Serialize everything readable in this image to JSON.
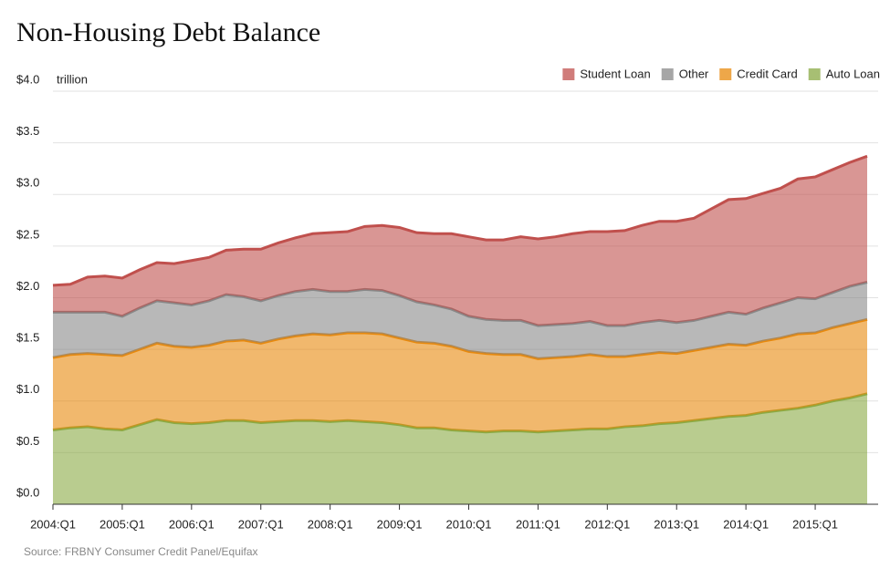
{
  "chart_data": {
    "type": "stacked_area",
    "title": "Non-Housing Debt Balance",
    "unit_label": "trillion",
    "source": "Source: FRBNY Consumer Credit Panel/Equifax",
    "categories": [
      "2004:Q1",
      null,
      null,
      null,
      "2005:Q1",
      null,
      null,
      null,
      "2006:Q1",
      null,
      null,
      null,
      "2007:Q1",
      null,
      null,
      null,
      "2008:Q1",
      null,
      null,
      null,
      "2009:Q1",
      null,
      null,
      null,
      "2010:Q1",
      null,
      null,
      null,
      "2011:Q1",
      null,
      null,
      null,
      "2012:Q1",
      null,
      null,
      null,
      "2013:Q1",
      null,
      null,
      null,
      "2014:Q1",
      null,
      null,
      null,
      "2015:Q1",
      null,
      null,
      null
    ],
    "series": [
      {
        "name": "Student Loan",
        "color": "#c0504d",
        "values": [
          0.26,
          0.27,
          0.34,
          0.35,
          0.37,
          0.37,
          0.37,
          0.38,
          0.43,
          0.42,
          0.43,
          0.46,
          0.5,
          0.51,
          0.52,
          0.54,
          0.57,
          0.58,
          0.61,
          0.63,
          0.66,
          0.67,
          0.69,
          0.73,
          0.77,
          0.77,
          0.78,
          0.81,
          0.84,
          0.85,
          0.87,
          0.87,
          0.91,
          0.92,
          0.94,
          0.96,
          0.98,
          0.99,
          1.04,
          1.09,
          1.12,
          1.11,
          1.11,
          1.15,
          1.18,
          1.19,
          1.2,
          1.22
        ]
      },
      {
        "name": "Other",
        "color": "#888888",
        "values": [
          0.44,
          0.41,
          0.4,
          0.41,
          0.38,
          0.4,
          0.41,
          0.42,
          0.41,
          0.43,
          0.45,
          0.42,
          0.41,
          0.42,
          0.43,
          0.43,
          0.42,
          0.4,
          0.42,
          0.42,
          0.41,
          0.39,
          0.37,
          0.36,
          0.34,
          0.33,
          0.33,
          0.33,
          0.32,
          0.32,
          0.32,
          0.32,
          0.3,
          0.3,
          0.31,
          0.31,
          0.3,
          0.29,
          0.3,
          0.31,
          0.3,
          0.32,
          0.34,
          0.35,
          0.33,
          0.34,
          0.36,
          0.36
        ]
      },
      {
        "name": "Credit Card",
        "color": "#e8890c",
        "values": [
          0.7,
          0.71,
          0.71,
          0.72,
          0.72,
          0.73,
          0.74,
          0.74,
          0.74,
          0.75,
          0.77,
          0.78,
          0.77,
          0.8,
          0.82,
          0.84,
          0.84,
          0.85,
          0.86,
          0.86,
          0.84,
          0.83,
          0.82,
          0.81,
          0.77,
          0.76,
          0.74,
          0.74,
          0.71,
          0.71,
          0.71,
          0.72,
          0.7,
          0.68,
          0.69,
          0.69,
          0.67,
          0.68,
          0.69,
          0.7,
          0.68,
          0.69,
          0.7,
          0.72,
          0.7,
          0.71,
          0.72,
          0.72
        ]
      },
      {
        "name": "Auto Loan",
        "color": "#8aaa44",
        "values": [
          0.72,
          0.74,
          0.75,
          0.73,
          0.72,
          0.77,
          0.82,
          0.79,
          0.78,
          0.79,
          0.81,
          0.81,
          0.79,
          0.8,
          0.81,
          0.81,
          0.8,
          0.81,
          0.8,
          0.79,
          0.77,
          0.74,
          0.74,
          0.72,
          0.71,
          0.7,
          0.71,
          0.71,
          0.7,
          0.71,
          0.72,
          0.73,
          0.73,
          0.75,
          0.76,
          0.78,
          0.79,
          0.81,
          0.83,
          0.85,
          0.86,
          0.89,
          0.91,
          0.93,
          0.96,
          1.0,
          1.03,
          1.07
        ]
      }
    ],
    "ylim": [
      0,
      4
    ],
    "yticks": [
      {
        "value": 0,
        "label": "$0.0"
      },
      {
        "value": 0.5,
        "label": "$0.5"
      },
      {
        "value": 1,
        "label": "$1.0"
      },
      {
        "value": 1.5,
        "label": "$1.5"
      },
      {
        "value": 2,
        "label": "$2.0"
      },
      {
        "value": 2.5,
        "label": "$2.5"
      },
      {
        "value": 3,
        "label": "$3.0"
      },
      {
        "value": 3.5,
        "label": "$3.5"
      },
      {
        "value": 4,
        "label": "$4.0"
      }
    ],
    "grid": true,
    "legend": "top-right"
  }
}
